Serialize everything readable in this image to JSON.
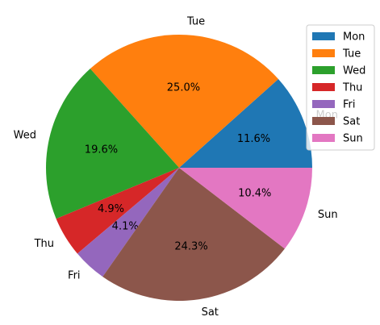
{
  "chart_data": {
    "type": "pie",
    "categories": [
      "Mon",
      "Tue",
      "Wed",
      "Thu",
      "Fri",
      "Sat",
      "Sun"
    ],
    "values": [
      11.6,
      25.0,
      19.6,
      4.9,
      4.1,
      24.3,
      10.4
    ],
    "value_labels": [
      "11.6%",
      "25.0%",
      "19.6%",
      "4.9%",
      "4.1%",
      "24.3%",
      "10.4%"
    ],
    "colors": [
      "#1f77b4",
      "#ff7f0e",
      "#2ca02c",
      "#d62728",
      "#9467bd",
      "#8c564b",
      "#e377c2"
    ],
    "legend": "upper right"
  }
}
